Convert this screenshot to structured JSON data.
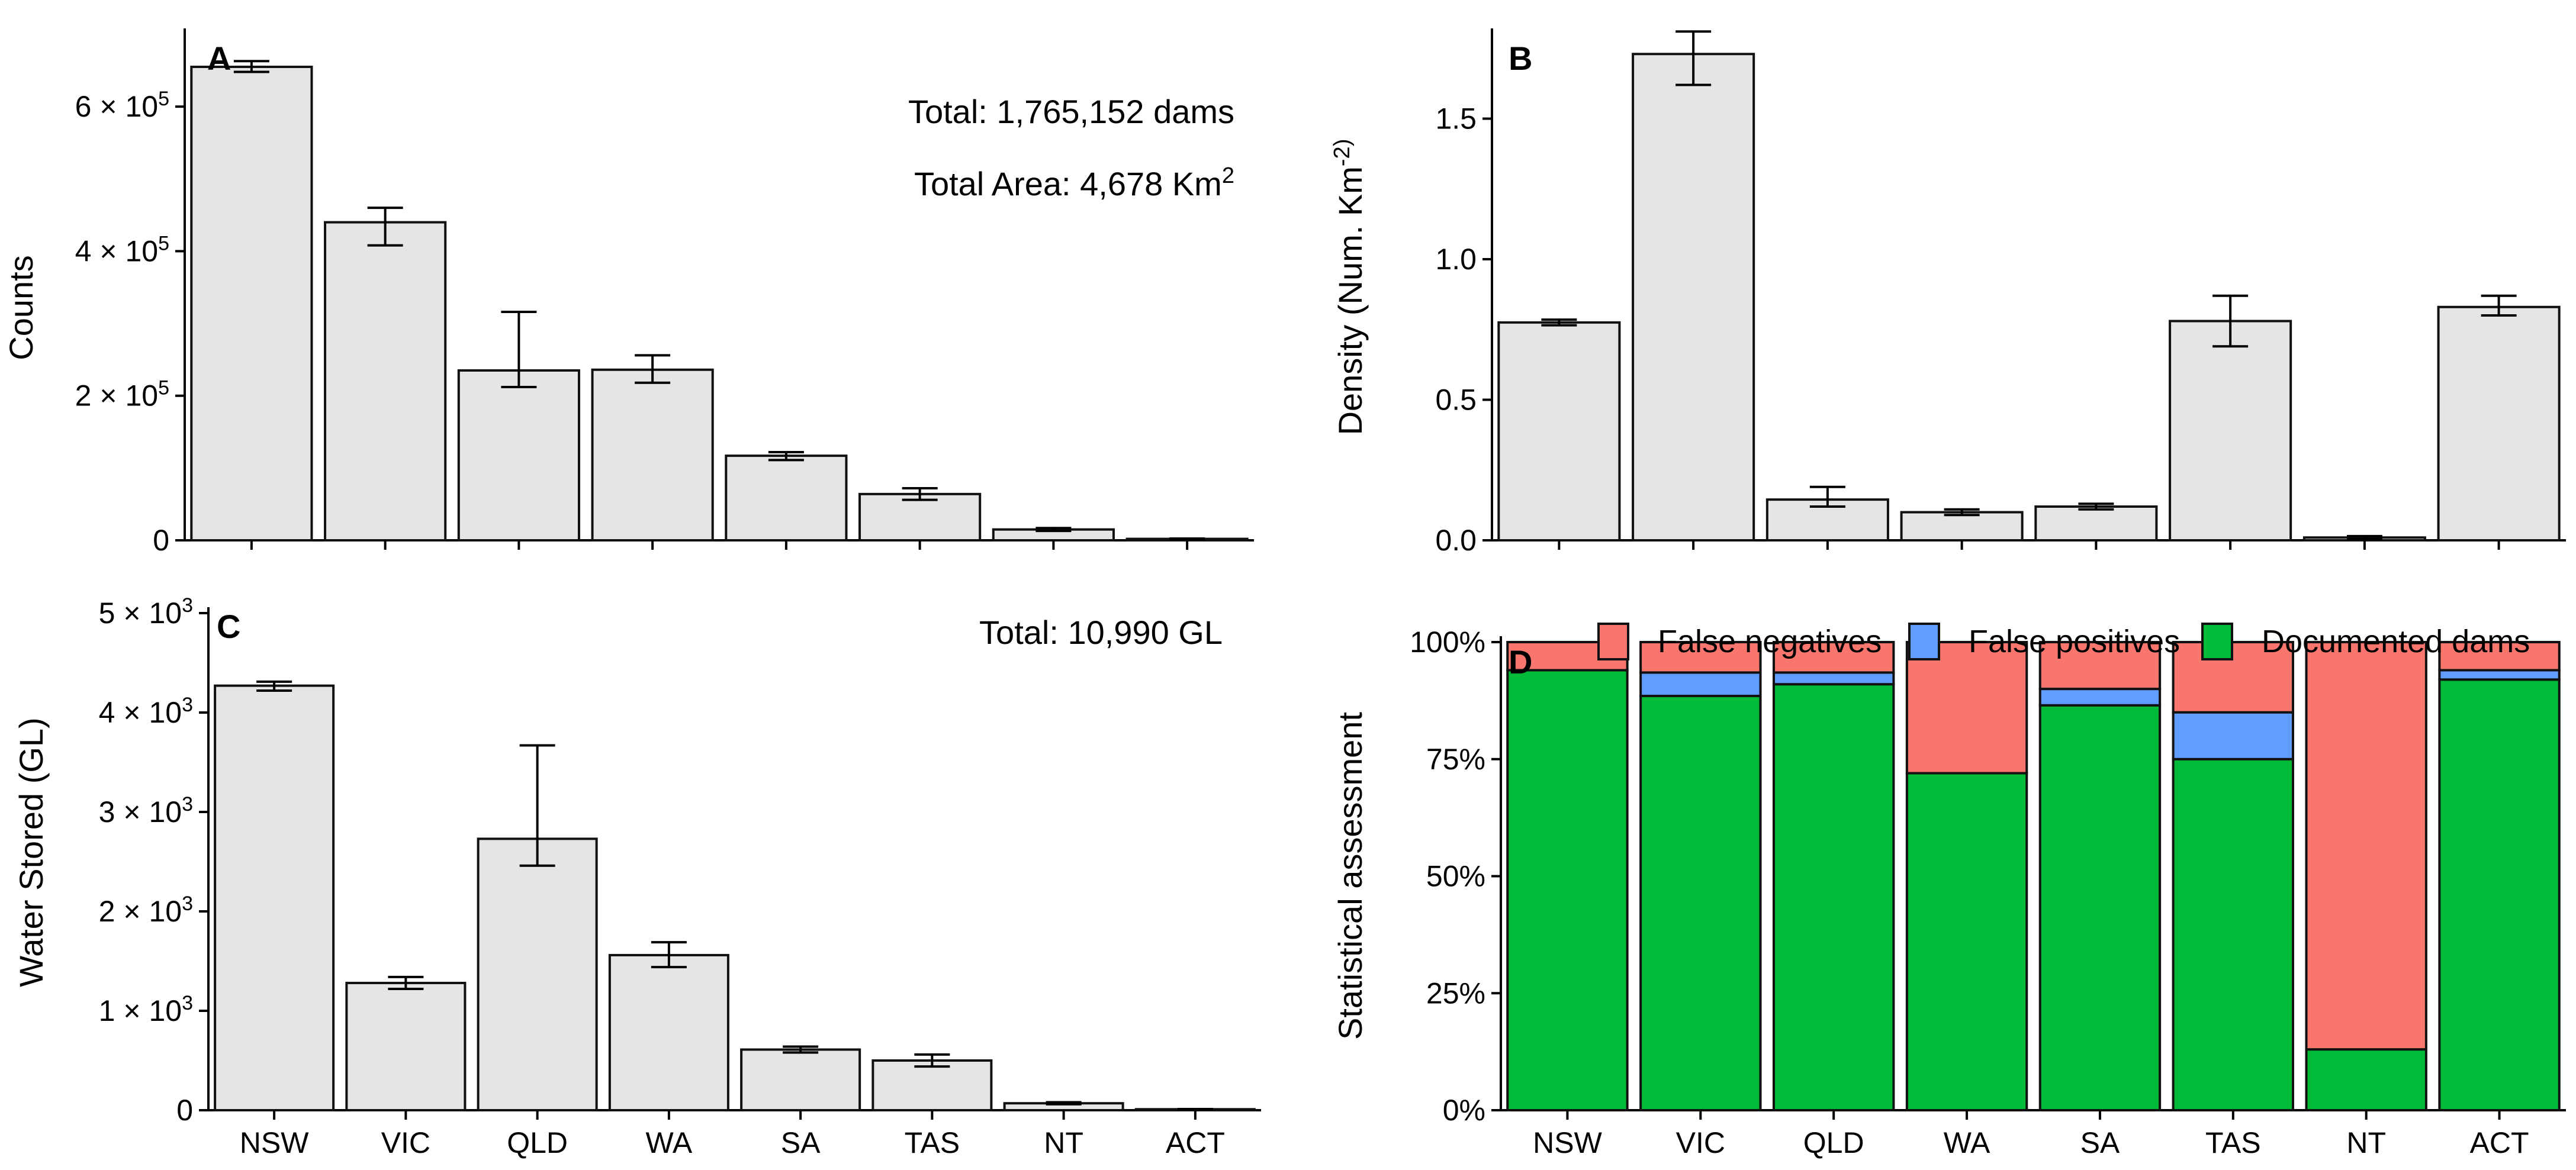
{
  "chart_data": [
    {
      "panel": "A",
      "type": "bar",
      "categories": [
        "NSW",
        "VIC",
        "QLD",
        "WA",
        "SA",
        "TAS",
        "NT",
        "ACT"
      ],
      "values": [
        655000,
        440000,
        235000,
        236000,
        117000,
        64000,
        15000,
        2000
      ],
      "error_low": [
        648000,
        408000,
        212000,
        218000,
        111000,
        56000,
        13000,
        1500
      ],
      "error_high": [
        663000,
        460000,
        316000,
        256000,
        122000,
        72000,
        17000,
        2500
      ],
      "ylabel": "Counts",
      "ylim": [
        0,
        700000
      ],
      "yticks": [
        0,
        200000,
        400000,
        600000
      ],
      "ytick_labels": [
        "0",
        "2 × 10^5",
        "4 × 10^5",
        "6 × 10^5"
      ],
      "annotations": [
        "Total: 1,765,152 dams",
        "Total Area: 4,678 Km^2"
      ],
      "show_x_labels": false
    },
    {
      "panel": "B",
      "type": "bar",
      "categories": [
        "NSW",
        "VIC",
        "QLD",
        "WA",
        "SA",
        "TAS",
        "NT",
        "ACT"
      ],
      "values": [
        0.775,
        1.73,
        0.145,
        0.1,
        0.12,
        0.78,
        0.01,
        0.83
      ],
      "error_low": [
        0.765,
        1.62,
        0.12,
        0.09,
        0.11,
        0.69,
        0.005,
        0.8
      ],
      "error_high": [
        0.785,
        1.81,
        0.19,
        0.11,
        0.13,
        0.87,
        0.015,
        0.87
      ],
      "ylabel": "Density (Num. Km^-2)",
      "ylim": [
        0,
        1.8
      ],
      "yticks": [
        0,
        0.5,
        1,
        1.5
      ],
      "ytick_labels": [
        "0.0",
        "0.5",
        "1.0",
        "1.5"
      ],
      "annotations": [],
      "show_x_labels": false
    },
    {
      "panel": "C",
      "type": "bar",
      "categories": [
        "NSW",
        "VIC",
        "QLD",
        "WA",
        "SA",
        "TAS",
        "NT",
        "ACT"
      ],
      "values": [
        4270,
        1280,
        2730,
        1560,
        610,
        500,
        70,
        10
      ],
      "error_low": [
        4220,
        1220,
        2460,
        1440,
        580,
        440,
        60,
        8
      ],
      "error_high": [
        4310,
        1340,
        3670,
        1690,
        640,
        560,
        80,
        12
      ],
      "ylabel": "Water Stored (GL)",
      "ylim": [
        0,
        5000
      ],
      "yticks": [
        0,
        1000,
        2000,
        3000,
        4000,
        5000
      ],
      "ytick_labels": [
        "0",
        "1 × 10^3",
        "2 × 10^3",
        "3 × 10^3",
        "4 × 10^3",
        "5 × 10^3"
      ],
      "annotations": [
        "Total: 10,990 GL"
      ],
      "show_x_labels": true
    },
    {
      "panel": "D",
      "type": "stacked_bar",
      "categories": [
        "NSW",
        "VIC",
        "QLD",
        "WA",
        "SA",
        "TAS",
        "NT",
        "ACT"
      ],
      "series": [
        {
          "name": "Documented dams",
          "color": "#00ba38",
          "values": [
            94,
            88.5,
            91,
            72,
            86.5,
            75,
            13,
            92
          ]
        },
        {
          "name": "False positives",
          "color": "#619cff",
          "values": [
            0,
            5,
            2.5,
            0,
            3.5,
            10,
            0,
            2
          ]
        },
        {
          "name": "False negatives",
          "color": "#f8766d",
          "values": [
            6,
            6.5,
            6.5,
            28,
            10,
            15,
            87,
            6
          ]
        }
      ],
      "legend_order": [
        "False negatives",
        "False positives",
        "Documented dams"
      ],
      "legend_position": "top",
      "ylabel": "Statistical assessment",
      "ylim": [
        0,
        100
      ],
      "yticks": [
        0,
        25,
        50,
        75,
        100
      ],
      "ytick_labels": [
        "0%",
        "25%",
        "50%",
        "75%",
        "100%"
      ],
      "show_x_labels": true
    }
  ],
  "panel_letters": [
    "A",
    "B",
    "C",
    "D"
  ]
}
